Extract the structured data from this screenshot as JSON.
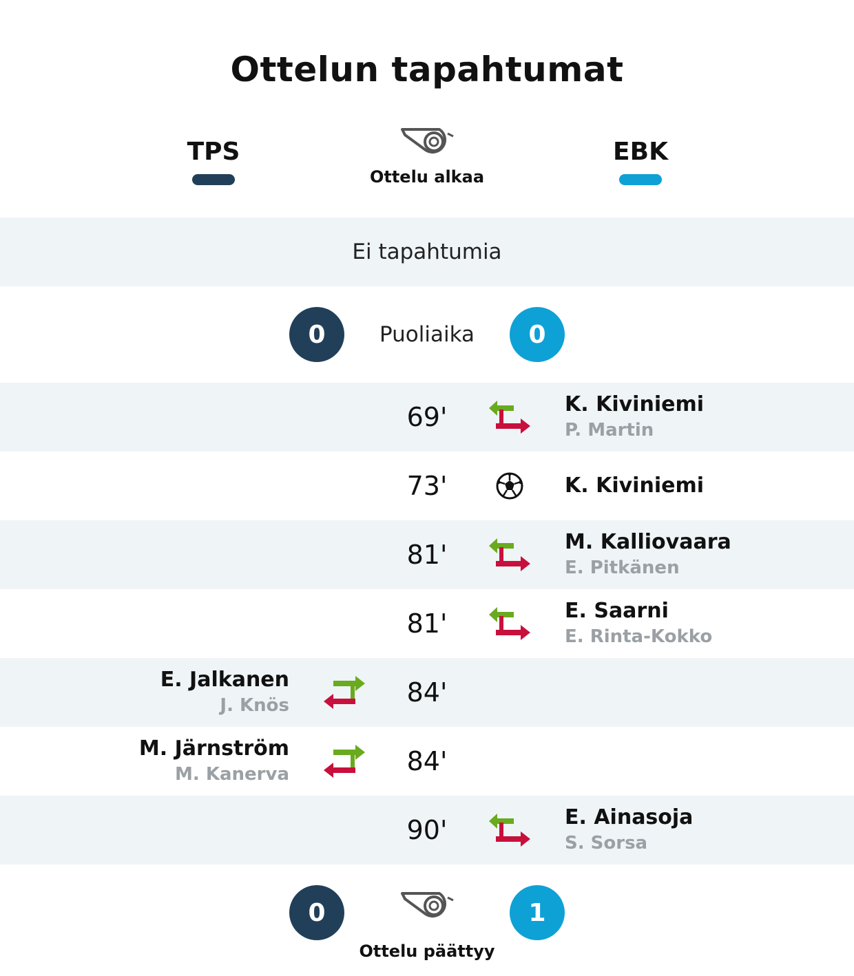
{
  "page": {
    "title": "Ottelun tapahtumat"
  },
  "teams": {
    "home": {
      "name": "TPS",
      "color": "#213f58"
    },
    "away": {
      "name": "EBK",
      "color": "#0ea1d6"
    }
  },
  "start": {
    "label": "Ottelu alkaa",
    "icon": "whistle-icon"
  },
  "first_half": {
    "text": "Ei tapahtumia"
  },
  "halftime": {
    "label": "Puoliaika",
    "home_score": "0",
    "away_score": "0"
  },
  "events": [
    {
      "minute": "69'",
      "side": "away",
      "type": "substitution",
      "player_in": "K. Kiviniemi",
      "player_out": "P. Martin"
    },
    {
      "minute": "73'",
      "side": "away",
      "type": "goal",
      "player": "K. Kiviniemi"
    },
    {
      "minute": "81'",
      "side": "away",
      "type": "substitution",
      "player_in": "M. Kalliovaara",
      "player_out": "E. Pitkänen"
    },
    {
      "minute": "81'",
      "side": "away",
      "type": "substitution",
      "player_in": "E. Saarni",
      "player_out": "E. Rinta-Kokko"
    },
    {
      "minute": "84'",
      "side": "home",
      "type": "substitution",
      "player_in": "E. Jalkanen",
      "player_out": "J. Knös"
    },
    {
      "minute": "84'",
      "side": "home",
      "type": "substitution",
      "player_in": "M. Järnström",
      "player_out": "M. Kanerva"
    },
    {
      "minute": "90'",
      "side": "away",
      "type": "substitution",
      "player_in": "E. Ainasoja",
      "player_out": "S. Sorsa"
    }
  ],
  "final": {
    "label": "Ottelu päättyy",
    "home_score": "0",
    "away_score": "1",
    "icon": "whistle-icon"
  },
  "colors": {
    "shaded_row": "#eff4f7",
    "sub_in": "#6aaa1e",
    "sub_out": "#c8103c",
    "player_out_text": "#9aa0a4"
  }
}
